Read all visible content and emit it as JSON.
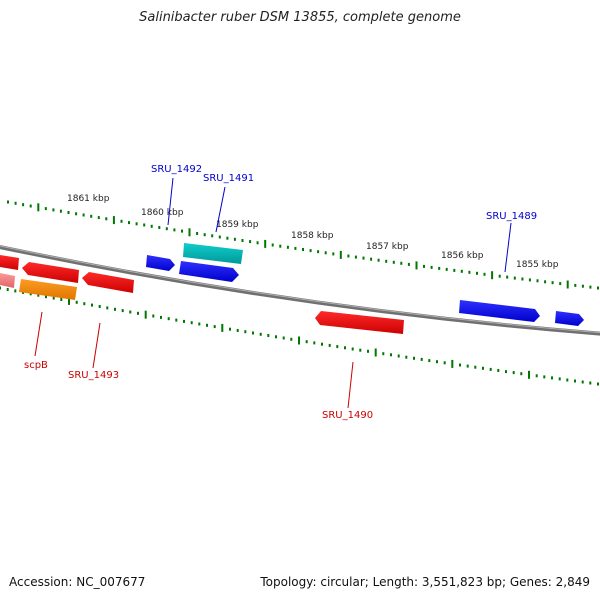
{
  "title": "Salinibacter ruber DSM 13855, complete genome",
  "footer": {
    "accession": "Accession: NC_007677",
    "summary": "Topology: circular; Length: 3,551,823 bp; Genes: 2,849"
  },
  "colors": {
    "forward_gene": "#0000ee",
    "reverse_gene": "#ee0000",
    "rna_gene": "#00bbbb",
    "other_gene": "#ff8800",
    "pseudo_gene": "#ee7777",
    "backbone": "#808080",
    "ticks": "#007700",
    "forward_label": "#0000cc",
    "reverse_label": "#cc0000"
  },
  "scale_labels": [
    "1861 kbp",
    "1860 kbp",
    "1859 kbp",
    "1858 kbp",
    "1857 kbp",
    "1856 kbp",
    "1855 kbp"
  ],
  "gene_labels": [
    {
      "name": "SRU_1492",
      "strand": "forward"
    },
    {
      "name": "SRU_1491",
      "strand": "forward"
    },
    {
      "name": "SRU_1489",
      "strand": "forward"
    },
    {
      "name": "scpB",
      "strand": "reverse"
    },
    {
      "name": "SRU_1493",
      "strand": "reverse"
    },
    {
      "name": "SRU_1490",
      "strand": "reverse"
    }
  ]
}
